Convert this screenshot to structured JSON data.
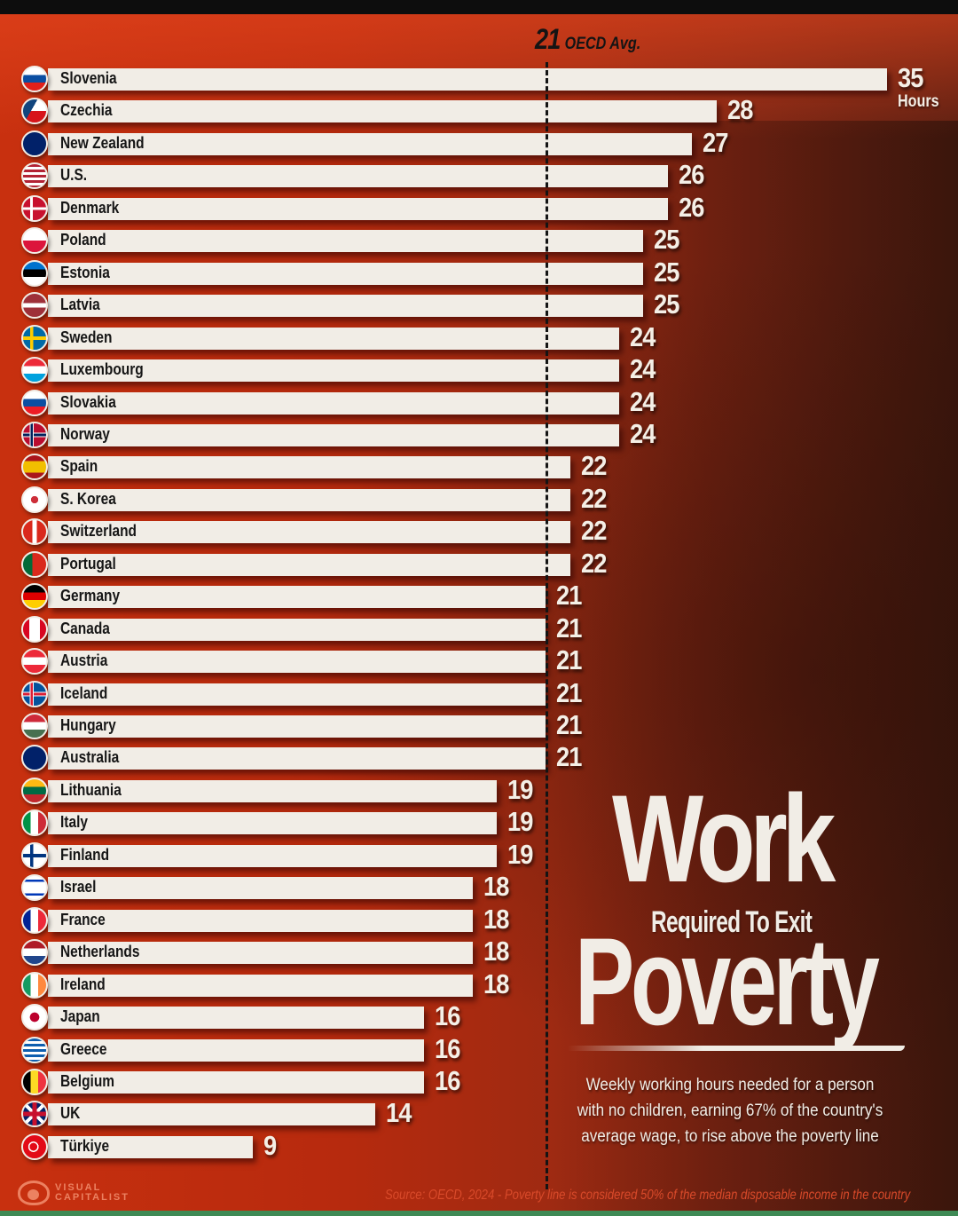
{
  "chart_data": {
    "type": "bar",
    "orientation": "horizontal",
    "title": "Work Required To Exit Poverty",
    "subtitle": "Weekly working hours needed for a person with no children, earning 67% of the country's average wage, to rise above the poverty line",
    "unit_label": "Hours",
    "reference_line": {
      "value": 21,
      "label": "OECD Avg."
    },
    "categories": [
      "Slovenia",
      "Czechia",
      "New Zealand",
      "U.S.",
      "Denmark",
      "Poland",
      "Estonia",
      "Latvia",
      "Sweden",
      "Luxembourg",
      "Slovakia",
      "Norway",
      "Spain",
      "S. Korea",
      "Switzerland",
      "Portugal",
      "Germany",
      "Canada",
      "Austria",
      "Iceland",
      "Hungary",
      "Australia",
      "Lithuania",
      "Italy",
      "Finland",
      "Israel",
      "France",
      "Netherlands",
      "Ireland",
      "Japan",
      "Greece",
      "Belgium",
      "UK",
      "Türkiye"
    ],
    "values": [
      35,
      28,
      27,
      26,
      26,
      25,
      25,
      25,
      24,
      24,
      24,
      24,
      22,
      22,
      22,
      22,
      21,
      21,
      21,
      21,
      21,
      21,
      19,
      19,
      19,
      18,
      18,
      18,
      18,
      16,
      16,
      16,
      14,
      9
    ],
    "xlabel": "",
    "ylabel": "",
    "xlim": [
      0,
      35
    ],
    "grid": false,
    "legend": null,
    "source": "Source: OECD, 2024 - Poverty line is considered 50% of the median disposable income in the country"
  },
  "header": {
    "avg_value": "21",
    "avg_label": "OECD Avg.",
    "unit": "Hours"
  },
  "title": {
    "line1": "Work",
    "line2": "Required To Exit",
    "line3": "Poverty"
  },
  "description": {
    "lines": [
      "Weekly working hours needed for a person",
      "with no children, earning 67% of the country's",
      "average wage, to rise above the poverty line"
    ]
  },
  "footer": {
    "logo_line1": "VISUAL",
    "logo_line2": "CAPITALIST",
    "source": "Source: OECD, 2024 - Poverty line is considered 50% of the median disposable income in the country"
  },
  "flags": {
    "Slovenia": "linear-gradient(#fff 0 33%,#0b4ea2 33% 66%,#e0201b 66%)",
    "Czechia": "linear-gradient(120deg,#11457e 0 40%,transparent 40%),linear-gradient(#fff 0 50%,#d7141a 50%)",
    "New Zealand": "linear-gradient(#012169,#012169)",
    "U.S.": "repeating-linear-gradient(#b22234 0 3px,#fff 3px 6px)",
    "Denmark": "linear-gradient(90deg,transparent 0 30%,#fff 30% 42%,transparent 42%),linear-gradient(transparent 0 44%,#fff 44% 56%,transparent 56%),linear-gradient(#c8102e,#c8102e)",
    "Poland": "linear-gradient(#fff 0 50%,#dc143c 50%)",
    "Estonia": "linear-gradient(#0072ce 0 33%,#000 33% 66%,#fff 66%)",
    "Latvia": "linear-gradient(#9e3039 0 40%,#fff 40% 60%,#9e3039 60%)",
    "Sweden": "linear-gradient(90deg,transparent 0 30%,#fecc00 30% 44%,transparent 44%),linear-gradient(transparent 0 43%,#fecc00 43% 57%,transparent 57%),linear-gradient(#006aa7,#006aa7)",
    "Luxembourg": "linear-gradient(#ed2939 0 33%,#fff 33% 66%,#00a1de 66%)",
    "Slovakia": "linear-gradient(#fff 0 33%,#0b4ea2 33% 66%,#ee1c25 66%)",
    "Norway": "linear-gradient(90deg,transparent 0 28%,#fff 28% 32%,#00205b 32% 42%,#fff 42% 46%,transparent 46%),linear-gradient(transparent 0 40%,#fff 40% 44%,#00205b 44% 56%,#fff 56% 60%,transparent 60%),linear-gradient(#ba0c2f,#ba0c2f)",
    "Spain": "linear-gradient(#aa151b 0 25%,#f1bf00 25% 75%,#aa151b 75%)",
    "S. Korea": "radial-gradient(circle at 50% 50%,#cd2e3a 0 22%,transparent 23%),linear-gradient(#fff,#fff)",
    "Switzerland": "linear-gradient(90deg,transparent 0 40%,#fff 40% 60%,transparent 60%),linear-gradient(transparent 0 25%,transparent 25%),linear-gradient(#da291c,#da291c)",
    "Portugal": "linear-gradient(90deg,#046a38 0 40%,#da291c 40%)",
    "Germany": "linear-gradient(#000 0 33%,#dd0000 33% 66%,#ffce00 66%)",
    "Canada": "linear-gradient(90deg,#d80621 0 27%,#fff 27% 73%,#d80621 73%)",
    "Austria": "linear-gradient(#ed2939 0 33%,#fff 33% 66%,#ed2939 66%)",
    "Iceland": "linear-gradient(90deg,transparent 0 28%,#fff 28% 32%,#dc1e35 32% 42%,#fff 42% 46%,transparent 46%),linear-gradient(transparent 0 40%,#fff 40% 44%,#dc1e35 44% 56%,#fff 56% 60%,transparent 60%),linear-gradient(#02529c,#02529c)",
    "Hungary": "linear-gradient(#ce2939 0 33%,#fff 33% 66%,#477050 66%)",
    "Australia": "linear-gradient(#012169,#012169)",
    "Lithuania": "linear-gradient(#fdb913 0 33%,#006a44 33% 66%,#c1272d 66%)",
    "Italy": "linear-gradient(90deg,#009246 0 33%,#fff 33% 66%,#ce2b37 66%)",
    "Finland": "linear-gradient(90deg,transparent 0 30%,#003580 30% 44%,transparent 44%),linear-gradient(transparent 0 43%,#003580 43% 57%,transparent 57%),linear-gradient(#fff,#fff)",
    "Israel": "linear-gradient(#fff 0 15%,#0038b8 15% 25%,#fff 25% 75%,#0038b8 75% 85%,#fff 85%)",
    "France": "linear-gradient(90deg,#002395 0 33%,#fff 33% 66%,#ed2939 66%)",
    "Netherlands": "linear-gradient(#ae1c28 0 33%,#fff 33% 66%,#21468b 66%)",
    "Ireland": "linear-gradient(90deg,#169b62 0 33%,#fff 33% 66%,#ff883e 66%)",
    "Japan": "radial-gradient(circle at 50% 50%,#bc002d 0 28%,#fff 30%)",
    "Greece": "repeating-linear-gradient(#0d5eaf 0 3px,#fff 3px 6px)",
    "Belgium": "linear-gradient(90deg,#000 0 33%,#fdda24 33% 66%,#ef3340 66%)",
    "UK": "linear-gradient(90deg,transparent 0 40%,#c8102e 40% 60%,transparent 60%),linear-gradient(transparent 0 40%,#c8102e 40% 60%,transparent 60%),linear-gradient(45deg,transparent 0 45%,#fff 45% 55%,transparent 55%),linear-gradient(-45deg,transparent 0 45%,#fff 45% 55%,transparent 55%),linear-gradient(#012169,#012169)",
    "Türkiye": "radial-gradient(circle at 45% 50%,transparent 0 22%,#fff 23% 30%,transparent 31%),linear-gradient(#e30a17,#e30a17)"
  },
  "colors": {
    "bar": "#f1ede6",
    "background": "#b72a0e",
    "text_dark": "#161616",
    "value_text": "#f4efe6"
  }
}
